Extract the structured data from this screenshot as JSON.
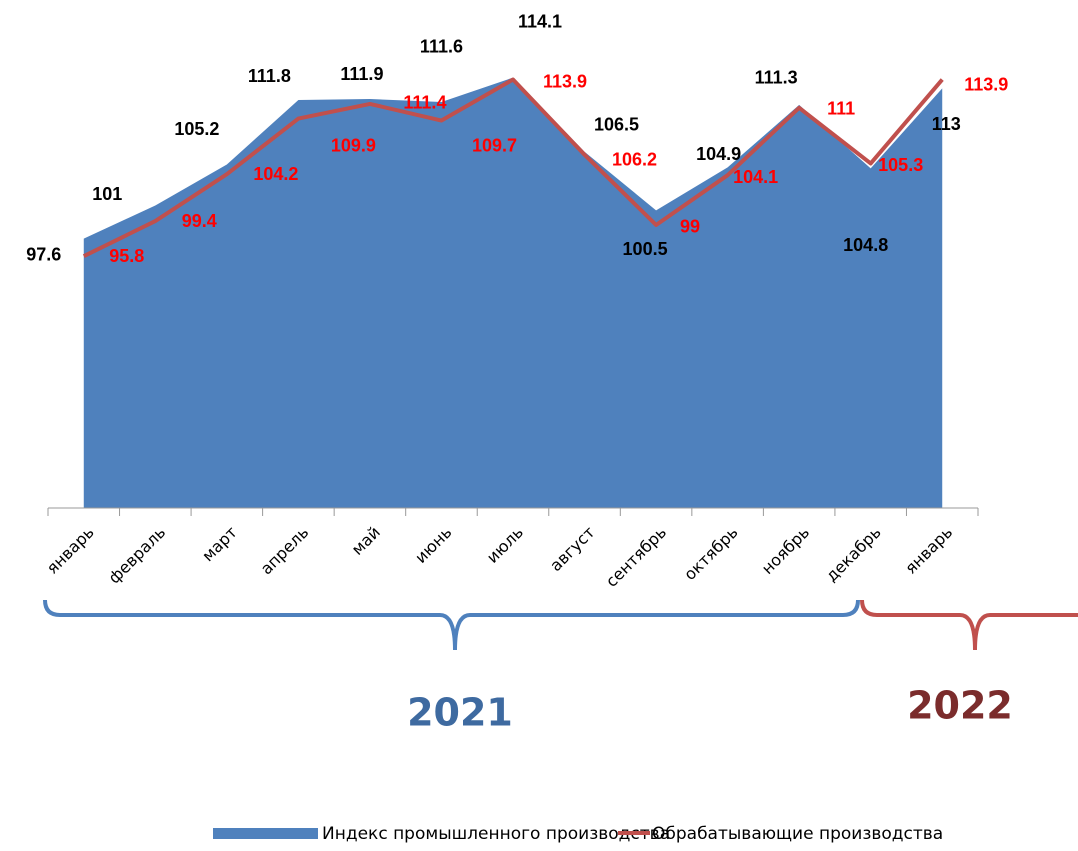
{
  "chart_data": {
    "type": "area-line",
    "categories": [
      "январь",
      "февраль",
      "март",
      "апрель",
      "май",
      "июнь",
      "июль",
      "август",
      "сентябрь",
      "октябрь",
      "ноябрь",
      "декабрь",
      "январь"
    ],
    "series": [
      {
        "name": "Индекс промышленного производства",
        "type": "area",
        "color": "#4f81bd",
        "label_color": "#000000",
        "values": [
          97.6,
          101,
          105.2,
          111.8,
          111.9,
          111.6,
          114.1,
          106.5,
          100.5,
          104.9,
          111.3,
          104.8,
          113
        ]
      },
      {
        "name": "Обрабатывающие производства",
        "type": "line",
        "color": "#c0504d",
        "label_color": "#ff0000",
        "values": [
          95.8,
          99.4,
          104.2,
          109.9,
          111.4,
          109.7,
          113.9,
          106.2,
          99,
          104.1,
          111,
          105.3,
          113.9
        ]
      }
    ],
    "ylim": [
      70,
      120
    ],
    "annotations": [
      {
        "text": "2021",
        "color": "#3e6aa0"
      },
      {
        "text": "2022",
        "color": "#7b2c2c"
      }
    ],
    "legend": "bottom"
  }
}
